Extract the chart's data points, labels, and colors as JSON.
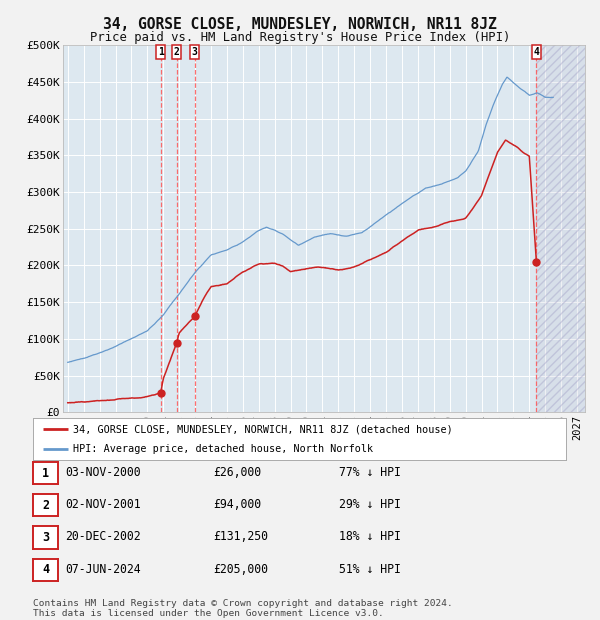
{
  "title": "34, GORSE CLOSE, MUNDESLEY, NORWICH, NR11 8JZ",
  "subtitle": "Price paid vs. HM Land Registry's House Price Index (HPI)",
  "ylim": [
    0,
    500000
  ],
  "yticks": [
    0,
    50000,
    100000,
    150000,
    200000,
    250000,
    300000,
    350000,
    400000,
    450000,
    500000
  ],
  "ytick_labels": [
    "£0",
    "£50K",
    "£100K",
    "£150K",
    "£200K",
    "£250K",
    "£300K",
    "£350K",
    "£400K",
    "£450K",
    "£500K"
  ],
  "xlim_start": 1994.7,
  "xlim_end": 2027.5,
  "xtick_years": [
    1995,
    1996,
    1997,
    1998,
    1999,
    2000,
    2001,
    2002,
    2003,
    2004,
    2005,
    2006,
    2007,
    2008,
    2009,
    2010,
    2011,
    2012,
    2013,
    2014,
    2015,
    2016,
    2017,
    2018,
    2019,
    2020,
    2021,
    2022,
    2023,
    2024,
    2025,
    2026,
    2027
  ],
  "hpi_color": "#6699cc",
  "price_color": "#cc2222",
  "vline_color": "#ff5555",
  "bg_color": "#dde8f0",
  "fig_bg": "#f2f2f2",
  "legend_label_red": "34, GORSE CLOSE, MUNDESLEY, NORWICH, NR11 8JZ (detached house)",
  "legend_label_blue": "HPI: Average price, detached house, North Norfolk",
  "transactions": [
    {
      "num": 1,
      "date_str": "03-NOV-2000",
      "year": 2000.84,
      "price": 26000,
      "pct": "77%"
    },
    {
      "num": 2,
      "date_str": "02-NOV-2001",
      "year": 2001.84,
      "price": 94000,
      "pct": "29%"
    },
    {
      "num": 3,
      "date_str": "20-DEC-2002",
      "year": 2002.97,
      "price": 131250,
      "pct": "18%"
    },
    {
      "num": 4,
      "date_str": "07-JUN-2024",
      "year": 2024.44,
      "price": 205000,
      "pct": "51%"
    }
  ],
  "footer_line1": "Contains HM Land Registry data © Crown copyright and database right 2024.",
  "footer_line2": "This data is licensed under the Open Government Licence v3.0."
}
